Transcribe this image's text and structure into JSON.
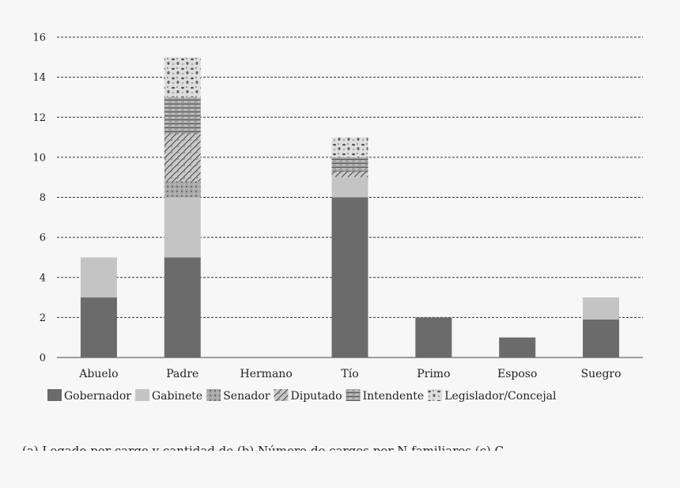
{
  "chart_data": {
    "type": "bar",
    "stacked": true,
    "categories": [
      "Abuelo",
      "Padre",
      "Hermano",
      "Tío",
      "Primo",
      "Esposo",
      "Suegro"
    ],
    "ylim": [
      0,
      16
    ],
    "yticks": [
      0,
      2,
      4,
      6,
      8,
      10,
      12,
      14,
      16
    ],
    "grid": "dashed horizontal",
    "legend_position": "bottom",
    "series": [
      {
        "name": "Gobernador",
        "color": "#6b6b6b",
        "pattern": "solid",
        "values": [
          3,
          5,
          0,
          8,
          2,
          1,
          1.9
        ]
      },
      {
        "name": "Gabinete",
        "color": "#c4c4c4",
        "pattern": "solid",
        "values": [
          2,
          3,
          0,
          1,
          0,
          0,
          1.1
        ]
      },
      {
        "name": "Senador",
        "color": "#a8a8a8",
        "pattern": "dots",
        "values": [
          0,
          0.8,
          0,
          0,
          0,
          0,
          0
        ]
      },
      {
        "name": "Diputado",
        "color": "#b8b8b8",
        "pattern": "hatch",
        "values": [
          0,
          2.4,
          0,
          0.3,
          0,
          0,
          0
        ]
      },
      {
        "name": "Intendente",
        "color": "#999999",
        "pattern": "lines",
        "values": [
          0,
          1.8,
          0,
          0.7,
          0,
          0,
          0
        ]
      },
      {
        "name": "Legislador/Concejal",
        "color": "#d6d6d6",
        "pattern": "blobs",
        "values": [
          0,
          2,
          0,
          1,
          0,
          0,
          0
        ]
      }
    ]
  },
  "caption": "(a) Legado por cargo y cantidad de (b) Número de cargos por N familiares (c) C"
}
